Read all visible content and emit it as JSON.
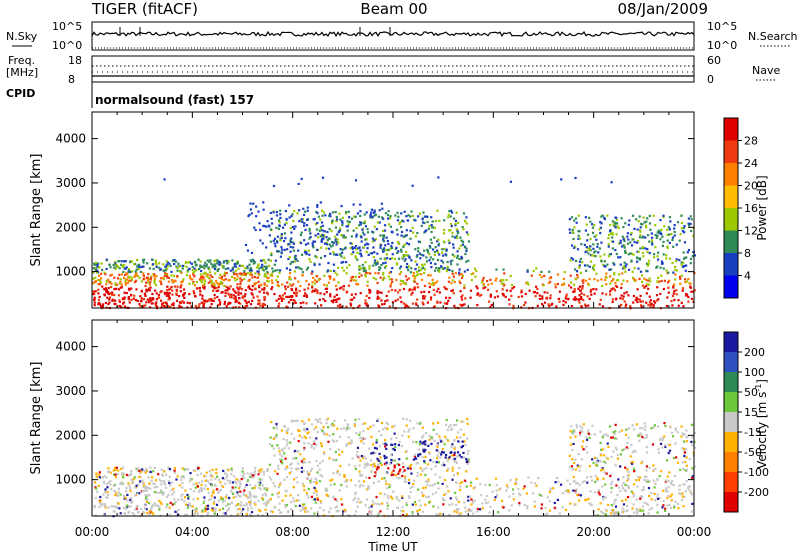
{
  "header": {
    "title": "TIGER (fitACF)",
    "beam": "Beam 00",
    "date": "08/Jan/2009"
  },
  "top_panels": {
    "nsky_label": "N.Sky",
    "nsearch_label": "N.Search",
    "freq_label_line1": "Freq.",
    "freq_label_line2": "[MHz]",
    "nave_label": "Nave",
    "cpid_label": "CPID",
    "cpid_value": "normalsound (fast) 157",
    "nsky_ticks": [
      "10^5",
      "10^0"
    ],
    "nsearch_ticks": [
      "10^5",
      "10^0"
    ],
    "freq_ticks": [
      "18",
      "8"
    ],
    "nave_ticks": [
      "60",
      "0"
    ]
  },
  "colorbars": {
    "power": {
      "label": "Power [dB]",
      "ticks": [
        "28",
        "24",
        "20",
        "16",
        "12",
        "8",
        "4"
      ],
      "colors": [
        "#e00000",
        "#f03a10",
        "#ff7f00",
        "#ffbb00",
        "#9cc800",
        "#2e8b57",
        "#1a3fc0",
        "#0000f0"
      ]
    },
    "velocity": {
      "label_main": "Velocity [m s",
      "label_sup": "-1",
      "label_end": "]",
      "ticks": [
        "200",
        "100",
        "50",
        "15",
        "-15",
        "-50",
        "-100",
        "-200"
      ],
      "colors": [
        "#1a1aa0",
        "#3050c0",
        "#2e8b57",
        "#6ac83a",
        "#c8c8c8",
        "#ffb000",
        "#ff7f00",
        "#ff4000",
        "#e00000"
      ]
    }
  },
  "chart_data": [
    {
      "type": "heatmap",
      "name": "power",
      "ylabel": "Slant Range [km]",
      "ylim": [
        180,
        4600
      ],
      "yticks": [
        1000,
        2000,
        3000,
        4000
      ],
      "xlim": [
        0,
        24
      ],
      "xticks": [
        0,
        4,
        8,
        12,
        16,
        20,
        24
      ]
    },
    {
      "type": "heatmap",
      "name": "velocity",
      "ylabel": "Slant Range [km]",
      "xlabel": "Time UT",
      "ylim": [
        180,
        4600
      ],
      "yticks": [
        1000,
        2000,
        3000,
        4000
      ],
      "xlim": [
        0,
        24
      ],
      "xticks": [
        0,
        4,
        8,
        12,
        16,
        20,
        24
      ],
      "xticklabels": [
        "00:00",
        "04:00",
        "08:00",
        "12:00",
        "16:00",
        "20:00",
        "00:00"
      ]
    }
  ]
}
